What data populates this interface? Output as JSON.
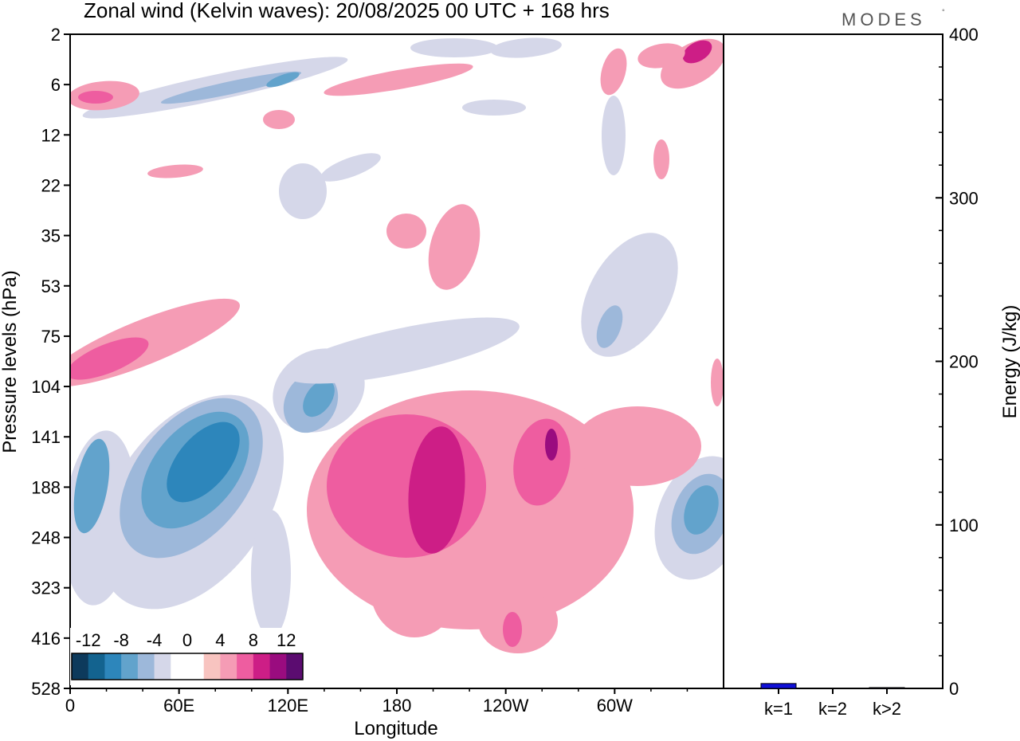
{
  "title": "Zonal wind (Kelvin waves):  20/08/2025  00 UTC  + 168 hrs",
  "logo": "MODES",
  "chart_data": [
    {
      "type": "heatmap",
      "title": "Zonal wind (Kelvin waves):  20/08/2025  00 UTC  + 168 hrs",
      "xlabel": "Longitude",
      "ylabel": "Pressure levels (hPa)",
      "x_ticks": [
        "0",
        "60E",
        "120E",
        "180",
        "120W",
        "60W"
      ],
      "y_ticks": [
        "2",
        "6",
        "12",
        "22",
        "35",
        "53",
        "75",
        "104",
        "141",
        "188",
        "248",
        "323",
        "416",
        "528"
      ],
      "colorbar": {
        "labels": [
          "-12",
          "-8",
          "-4",
          "0",
          "4",
          "8",
          "12"
        ],
        "colors": [
          "#0d3a5c",
          "#13638f",
          "#2d86bb",
          "#62a3cc",
          "#9db8da",
          "#d5d7e9",
          "#ffffff",
          "#ffffff",
          "#f8c4c0",
          "#f59cb5",
          "#ee5da0",
          "#cd1e86",
          "#9a0c7f",
          "#5b0c70"
        ]
      },
      "regions": [
        {
          "v": -4,
          "cx": 125,
          "cy": 650,
          "rx": 45,
          "ry": 110,
          "rot": 5
        },
        {
          "v": -8,
          "cx": 115,
          "cy": 610,
          "rx": 20,
          "ry": 60,
          "rot": 10
        },
        {
          "v": -4,
          "cx": 240,
          "cy": 630,
          "rx": 95,
          "ry": 150,
          "rot": 35
        },
        {
          "v": -6,
          "cx": 240,
          "cy": 600,
          "rx": 70,
          "ry": 115,
          "rot": 38
        },
        {
          "v": -8,
          "cx": 245,
          "cy": 590,
          "rx": 52,
          "ry": 85,
          "rot": 40
        },
        {
          "v": -10,
          "cx": 255,
          "cy": 580,
          "rx": 32,
          "ry": 60,
          "rot": 40
        },
        {
          "v": -4,
          "cx": 400,
          "cy": 490,
          "rx": 60,
          "ry": 50,
          "rot": -30
        },
        {
          "v": -6,
          "cx": 390,
          "cy": 505,
          "rx": 32,
          "ry": 40,
          "rot": 30
        },
        {
          "v": -8,
          "cx": 400,
          "cy": 500,
          "rx": 16,
          "ry": 26,
          "rot": 35
        },
        {
          "v": -4,
          "cx": 505,
          "cy": 440,
          "rx": 150,
          "ry": 28,
          "rot": -12
        },
        {
          "v": -4,
          "cx": 340,
          "cy": 720,
          "rx": 25,
          "ry": 80,
          "rot": 0
        },
        {
          "v": -4,
          "cx": 880,
          "cy": 650,
          "rx": 55,
          "ry": 80,
          "rot": 20
        },
        {
          "v": -6,
          "cx": 880,
          "cy": 645,
          "rx": 35,
          "ry": 52,
          "rot": 20
        },
        {
          "v": -8,
          "cx": 880,
          "cy": 640,
          "rx": 20,
          "ry": 32,
          "rot": 20
        },
        {
          "v": -4,
          "cx": 790,
          "cy": 370,
          "rx": 50,
          "ry": 85,
          "rot": 30
        },
        {
          "v": -6,
          "cx": 765,
          "cy": 410,
          "rx": 14,
          "ry": 28,
          "rot": 20
        },
        {
          "v": -4,
          "cx": 270,
          "cy": 110,
          "rx": 170,
          "ry": 16,
          "rot": -12
        },
        {
          "v": -6,
          "cx": 290,
          "cy": 110,
          "rx": 90,
          "ry": 8,
          "rot": -12
        },
        {
          "v": -8,
          "cx": 355,
          "cy": 100,
          "rx": 22,
          "ry": 6,
          "rot": -20
        },
        {
          "v": -4,
          "cx": 570,
          "cy": 60,
          "rx": 55,
          "ry": 12,
          "rot": 0
        },
        {
          "v": -4,
          "cx": 660,
          "cy": 60,
          "rx": 45,
          "ry": 12,
          "rot": -5
        },
        {
          "v": -4,
          "cx": 380,
          "cy": 240,
          "rx": 30,
          "ry": 35,
          "rot": 0
        },
        {
          "v": -4,
          "cx": 440,
          "cy": 210,
          "rx": 40,
          "ry": 12,
          "rot": -20
        },
        {
          "v": -4,
          "cx": 620,
          "cy": 135,
          "rx": 40,
          "ry": 10,
          "rot": 0
        },
        {
          "v": -4,
          "cx": 770,
          "cy": 170,
          "rx": 15,
          "ry": 50,
          "rot": 0
        },
        {
          "v": 4,
          "cx": 590,
          "cy": 640,
          "rx": 205,
          "ry": 150,
          "rot": 0
        },
        {
          "v": 4,
          "cx": 520,
          "cy": 740,
          "rx": 55,
          "ry": 60,
          "rot": 0
        },
        {
          "v": 4,
          "cx": 650,
          "cy": 780,
          "rx": 50,
          "ry": 40,
          "rot": 0
        },
        {
          "v": 4,
          "cx": 800,
          "cy": 560,
          "rx": 80,
          "ry": 50,
          "rot": 0
        },
        {
          "v": 6,
          "cx": 510,
          "cy": 610,
          "rx": 100,
          "ry": 90,
          "rot": 0
        },
        {
          "v": 6,
          "cx": 680,
          "cy": 580,
          "rx": 35,
          "ry": 55,
          "rot": 10
        },
        {
          "v": 8,
          "cx": 548,
          "cy": 615,
          "rx": 35,
          "ry": 80,
          "rot": 5
        },
        {
          "v": 10,
          "cx": 692,
          "cy": 558,
          "rx": 8,
          "ry": 20,
          "rot": 0
        },
        {
          "v": 6,
          "cx": 643,
          "cy": 790,
          "rx": 12,
          "ry": 22,
          "rot": 0
        },
        {
          "v": 4,
          "cx": 570,
          "cy": 310,
          "rx": 30,
          "ry": 55,
          "rot": 15
        },
        {
          "v": 4,
          "cx": 510,
          "cy": 290,
          "rx": 25,
          "ry": 22,
          "rot": 0
        },
        {
          "v": 4,
          "cx": 180,
          "cy": 430,
          "rx": 130,
          "ry": 28,
          "rot": -22
        },
        {
          "v": 6,
          "cx": 135,
          "cy": 450,
          "rx": 55,
          "ry": 18,
          "rot": -22
        },
        {
          "v": 4,
          "cx": 130,
          "cy": 120,
          "rx": 45,
          "ry": 18,
          "rot": -5
        },
        {
          "v": 6,
          "cx": 120,
          "cy": 122,
          "rx": 22,
          "ry": 8,
          "rot": 0
        },
        {
          "v": 4,
          "cx": 500,
          "cy": 100,
          "rx": 95,
          "ry": 12,
          "rot": -10
        },
        {
          "v": 4,
          "cx": 220,
          "cy": 215,
          "rx": 35,
          "ry": 8,
          "rot": -5
        },
        {
          "v": 4,
          "cx": 770,
          "cy": 90,
          "rx": 15,
          "ry": 30,
          "rot": 15
        },
        {
          "v": 4,
          "cx": 870,
          "cy": 80,
          "rx": 45,
          "ry": 25,
          "rot": -30
        },
        {
          "v": 8,
          "cx": 875,
          "cy": 65,
          "rx": 20,
          "ry": 12,
          "rot": -30
        },
        {
          "v": 4,
          "cx": 830,
          "cy": 70,
          "rx": 30,
          "ry": 15,
          "rot": -10
        },
        {
          "v": 4,
          "cx": 830,
          "cy": 200,
          "rx": 10,
          "ry": 25,
          "rot": 0
        },
        {
          "v": 4,
          "cx": 900,
          "cy": 480,
          "rx": 8,
          "ry": 30,
          "rot": 0
        },
        {
          "v": 4,
          "cx": 350,
          "cy": 150,
          "rx": 20,
          "ry": 12,
          "rot": 0
        }
      ]
    },
    {
      "type": "bar",
      "categories": [
        "k=1",
        "k=2",
        "k>2"
      ],
      "values": [
        3,
        0,
        0.5
      ],
      "ylabel": "Energy (J/kg)",
      "y_ticks": [
        "0",
        "100",
        "200",
        "300",
        "400"
      ],
      "ylim": [
        0,
        400
      ],
      "bar_color": "#1010d8"
    }
  ]
}
